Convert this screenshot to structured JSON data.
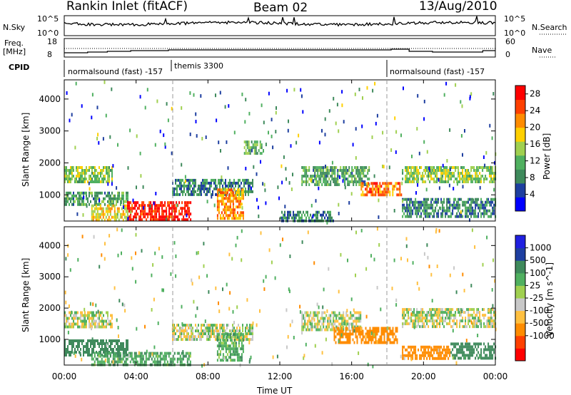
{
  "header": {
    "station": "Rankin Inlet (fitACF)",
    "beam": "Beam 02",
    "date": "13/Aug/2010"
  },
  "top_panels": {
    "nsky_label": "N.Sky",
    "nsky_ticks": [
      "10^5",
      "10^0"
    ],
    "nsearch_label": "N.Search",
    "nsearch_ticks": [
      "10^5",
      "10^0"
    ],
    "freq_label": "Freq.",
    "freq_unit": "[MHz]",
    "freq_ticks": [
      "18",
      "8"
    ],
    "nave_label": "Nave",
    "nave_ticks": [
      "60",
      "0"
    ],
    "cpid_label": "CPID",
    "cpid_segments": [
      {
        "label": "normalsound (fast) -157",
        "start_hour": 0
      },
      {
        "label": "themis 3300",
        "start_hour": 6
      },
      {
        "label": "normalsound (fast) -157",
        "start_hour": 18
      }
    ]
  },
  "colors": {
    "power": [
      "#0000ff",
      "#1e3fa0",
      "#3f8a5c",
      "#50b060",
      "#a0d050",
      "#ffd000",
      "#ff8c00",
      "#ff4000",
      "#ff0000"
    ],
    "velocity": [
      "#ff0000",
      "#ff4000",
      "#ff8c00",
      "#ffc040",
      "#c8c8c8",
      "#a0d050",
      "#50b060",
      "#3f8a5c",
      "#1e3fa0",
      "#2020e0"
    ]
  },
  "chart_data": [
    {
      "type": "heatmap",
      "name_panel": "power",
      "xlabel": "Time UT",
      "ylabel": "Slant Range [km]",
      "x_ticks": [
        "00:00",
        "04:00",
        "08:00",
        "12:00",
        "16:00",
        "20:00",
        "00:00"
      ],
      "xlim": [
        0,
        24
      ],
      "y_ticks": [
        1000,
        2000,
        3000,
        4000
      ],
      "ylim": [
        180,
        4600
      ],
      "colorbar_label": "Power [dB]",
      "colorbar_ticks": [
        "28",
        "24",
        "20",
        "16",
        "12",
        "8",
        "4"
      ],
      "colorbar_range": [
        0,
        30
      ],
      "features": [
        {
          "t0": 0.0,
          "t1": 2.7,
          "r0": 1400,
          "r1": 1900,
          "v": 14
        },
        {
          "t0": 0.0,
          "t1": 3.5,
          "r0": 700,
          "r1": 1100,
          "v": 10
        },
        {
          "t0": 1.5,
          "t1": 3.5,
          "r0": 180,
          "r1": 700,
          "v": 18
        },
        {
          "t0": 3.5,
          "t1": 7.0,
          "r0": 180,
          "r1": 800,
          "v": 29
        },
        {
          "t0": 6.0,
          "t1": 10.5,
          "r0": 1000,
          "r1": 1500,
          "v": 8
        },
        {
          "t0": 8.5,
          "t1": 10.0,
          "r0": 300,
          "r1": 1200,
          "v": 22
        },
        {
          "t0": 10.0,
          "t1": 11.0,
          "r0": 2300,
          "r1": 2700,
          "v": 12
        },
        {
          "t0": 13.2,
          "t1": 17.0,
          "r0": 1300,
          "r1": 1900,
          "v": 10
        },
        {
          "t0": 16.5,
          "t1": 18.8,
          "r0": 1000,
          "r1": 1400,
          "v": 24
        },
        {
          "t0": 18.8,
          "t1": 24.0,
          "r0": 1400,
          "r1": 1900,
          "v": 14
        },
        {
          "t0": 18.8,
          "t1": 24.0,
          "r0": 300,
          "r1": 900,
          "v": 8
        },
        {
          "t0": 12.0,
          "t1": 15.0,
          "r0": 180,
          "r1": 500,
          "v": 8
        }
      ]
    },
    {
      "type": "heatmap",
      "name_panel": "velocity",
      "xlabel": "Time UT",
      "ylabel": "Slant Range [km]",
      "x_ticks": [
        "00:00",
        "04:00",
        "08:00",
        "12:00",
        "16:00",
        "20:00",
        "00:00"
      ],
      "xlim": [
        0,
        24
      ],
      "y_ticks": [
        1000,
        2000,
        3000,
        4000
      ],
      "ylim": [
        180,
        4600
      ],
      "colorbar_label": "Velocity [m s^-1]",
      "colorbar_ticks": [
        "1000",
        "500",
        "100",
        "25",
        "-25",
        "-100",
        "-500",
        "-1000"
      ],
      "features": [
        {
          "t0": 0.0,
          "t1": 2.7,
          "r0": 1400,
          "r1": 1900,
          "v": 0
        },
        {
          "t0": 0.0,
          "t1": 3.5,
          "r0": 500,
          "r1": 1000,
          "v": 300
        },
        {
          "t0": 1.5,
          "t1": 7.0,
          "r0": 180,
          "r1": 600,
          "v": 80
        },
        {
          "t0": 6.0,
          "t1": 10.5,
          "r0": 1000,
          "r1": 1500,
          "v": 0
        },
        {
          "t0": 8.5,
          "t1": 10.0,
          "r0": 300,
          "r1": 1200,
          "v": 60
        },
        {
          "t0": 13.2,
          "t1": 16.5,
          "r0": 1300,
          "r1": 1900,
          "v": 0
        },
        {
          "t0": 15.0,
          "t1": 18.5,
          "r0": 900,
          "r1": 1400,
          "v": -300
        },
        {
          "t0": 18.8,
          "t1": 21.5,
          "r0": 350,
          "r1": 800,
          "v": -300
        },
        {
          "t0": 18.8,
          "t1": 24.0,
          "r0": 1400,
          "r1": 2000,
          "v": 0
        },
        {
          "t0": 21.5,
          "t1": 24.0,
          "r0": 400,
          "r1": 900,
          "v": 300
        }
      ]
    }
  ]
}
